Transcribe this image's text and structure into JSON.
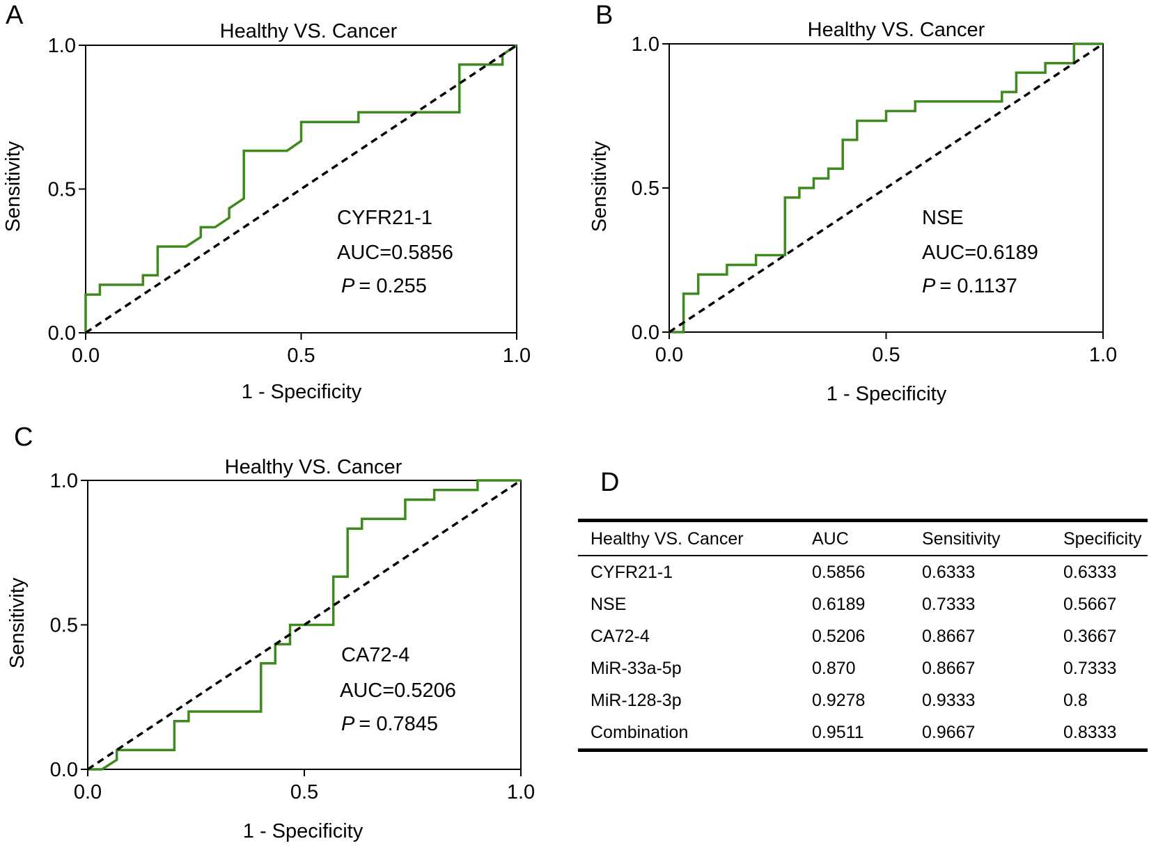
{
  "chart_data": [
    {
      "type": "line",
      "panel": "A",
      "title": "Healthy VS. Cancer",
      "xlabel": "1 - Specificity",
      "ylabel": "Sensitivity",
      "xlim": [
        0,
        1
      ],
      "ylim": [
        0,
        1
      ],
      "ticks": [
        "0.0",
        "0.5",
        "1.0"
      ],
      "series": [
        {
          "name": "ROC",
          "color": "#3f8a1f",
          "x": [
            0,
            0,
            0.033,
            0.033,
            0.133,
            0.133,
            0.167,
            0.167,
            0.233,
            0.267,
            0.267,
            0.3,
            0.333,
            0.333,
            0.367,
            0.367,
            0.467,
            0.5,
            0.5,
            0.633,
            0.633,
            0.867,
            0.867,
            0.967,
            0.967,
            1
          ],
          "y": [
            0,
            0.133,
            0.133,
            0.167,
            0.167,
            0.2,
            0.2,
            0.3,
            0.3,
            0.333,
            0.367,
            0.367,
            0.4,
            0.433,
            0.467,
            0.633,
            0.633,
            0.667,
            0.733,
            0.733,
            0.767,
            0.767,
            0.933,
            0.933,
            0.967,
            1
          ]
        },
        {
          "name": "Reference",
          "color": "#000000",
          "x": [
            0,
            1
          ],
          "y": [
            0,
            1
          ],
          "dashed": true
        }
      ],
      "annotation": {
        "marker": "CYFR21-1",
        "auc": "AUC=0.5856",
        "p_label": "P",
        "p_value": "= 0.255"
      }
    },
    {
      "type": "line",
      "panel": "B",
      "title": "Healthy VS. Cancer",
      "xlabel": "1 - Specificity",
      "ylabel": "Sensitivity",
      "xlim": [
        0,
        1
      ],
      "ylim": [
        0,
        1
      ],
      "ticks": [
        "0.0",
        "0.5",
        "1.0"
      ],
      "series": [
        {
          "name": "ROC",
          "color": "#3f8a1f",
          "x": [
            0,
            0.033,
            0.033,
            0.067,
            0.067,
            0.133,
            0.133,
            0.2,
            0.2,
            0.267,
            0.267,
            0.3,
            0.3,
            0.333,
            0.333,
            0.367,
            0.367,
            0.4,
            0.4,
            0.433,
            0.433,
            0.5,
            0.5,
            0.567,
            0.567,
            0.767,
            0.767,
            0.8,
            0.8,
            0.867,
            0.867,
            0.933,
            0.933,
            1
          ],
          "y": [
            0,
            0,
            0.133,
            0.133,
            0.2,
            0.2,
            0.233,
            0.233,
            0.267,
            0.267,
            0.467,
            0.467,
            0.5,
            0.5,
            0.533,
            0.533,
            0.567,
            0.567,
            0.667,
            0.667,
            0.733,
            0.733,
            0.767,
            0.767,
            0.8,
            0.8,
            0.833,
            0.833,
            0.9,
            0.9,
            0.933,
            0.933,
            1,
            1
          ]
        },
        {
          "name": "Reference",
          "color": "#000000",
          "x": [
            0,
            1
          ],
          "y": [
            0,
            1
          ],
          "dashed": true
        }
      ],
      "annotation": {
        "marker": "NSE",
        "auc": "AUC=0.6189",
        "p_label": "P",
        "p_value": "= 0.1137"
      }
    },
    {
      "type": "line",
      "panel": "C",
      "title": "Healthy VS. Cancer",
      "xlabel": "1 - Specificity",
      "ylabel": "Sensitivity",
      "xlim": [
        0,
        1
      ],
      "ylim": [
        0,
        1
      ],
      "ticks": [
        "0.0",
        "0.5",
        "1.0"
      ],
      "series": [
        {
          "name": "ROC",
          "color": "#3f8a1f",
          "x": [
            0,
            0.033,
            0.067,
            0.067,
            0.2,
            0.2,
            0.233,
            0.233,
            0.4,
            0.4,
            0.433,
            0.433,
            0.467,
            0.467,
            0.567,
            0.567,
            0.6,
            0.6,
            0.633,
            0.633,
            0.733,
            0.733,
            0.8,
            0.8,
            0.9,
            0.9,
            1
          ],
          "y": [
            0,
            0,
            0.033,
            0.067,
            0.067,
            0.167,
            0.167,
            0.2,
            0.2,
            0.367,
            0.367,
            0.433,
            0.433,
            0.5,
            0.5,
            0.667,
            0.667,
            0.833,
            0.833,
            0.867,
            0.867,
            0.933,
            0.933,
            0.967,
            0.967,
            1,
            1
          ]
        },
        {
          "name": "Reference",
          "color": "#000000",
          "x": [
            0,
            1
          ],
          "y": [
            0,
            1
          ],
          "dashed": true
        }
      ],
      "annotation": {
        "marker": "CA72-4",
        "auc": "AUC=0.5206",
        "p_label": "P",
        "p_value": "= 0.7845"
      }
    },
    {
      "type": "table",
      "panel": "D",
      "columns": [
        "Healthy VS. Cancer",
        "AUC",
        "Sensitivity",
        "Specificity"
      ],
      "rows": [
        [
          "CYFR21-1",
          "0.5856",
          "0.6333",
          "0.6333"
        ],
        [
          "NSE",
          "0.6189",
          "0.7333",
          "0.5667"
        ],
        [
          "CA72-4",
          "0.5206",
          "0.8667",
          "0.3667"
        ],
        [
          "MiR-33a-5p",
          "0.870",
          "0.8667",
          "0.7333"
        ],
        [
          "MiR-128-3p",
          "0.9278",
          "0.9333",
          "0.8"
        ],
        [
          "Combination",
          "0.9511",
          "0.9667",
          "0.8333"
        ]
      ]
    }
  ],
  "colors": {
    "roc_line": "#3f8a1f",
    "reference_line": "#000000",
    "axis": "#000000"
  }
}
